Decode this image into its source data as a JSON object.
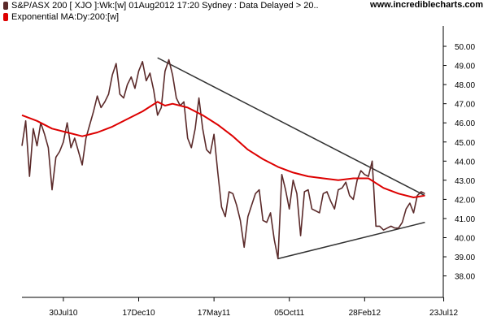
{
  "header": {
    "series_label": "S&P/ASX 200 [ XJO ]:Wk:[w]  01Aug2012 17:20 Sydney : Data Delayed > 20..",
    "ma_label": "Exponential MA:Dy:200:[w]",
    "site": "www.incrediblecharts.com"
  },
  "colors": {
    "price": "#5b2a2a",
    "ma": "#dd0000",
    "trendline": "#333333",
    "axis": "#000000"
  },
  "chart_data": {
    "type": "line",
    "title": "",
    "xlabel": "",
    "ylabel": "",
    "ylim": [
      37.5,
      50.5
    ],
    "xlim": [
      0,
      109
    ],
    "x_ticks": [
      {
        "x": 11,
        "label": "30Jul10"
      },
      {
        "x": 31,
        "label": "17Dec10"
      },
      {
        "x": 51,
        "label": "17May11"
      },
      {
        "x": 71,
        "label": "05Oct11"
      },
      {
        "x": 91,
        "label": "28Feb12"
      },
      {
        "x": 112,
        "label": "23Jul12"
      }
    ],
    "y_ticks": [
      38,
      39,
      40,
      41,
      42,
      43,
      44,
      45,
      46,
      47,
      48,
      49,
      50
    ],
    "y_tick_labels": [
      "38.00",
      "39.00",
      "40.00",
      "41.00",
      "42.00",
      "43.00",
      "44.00",
      "45.00",
      "46.00",
      "47.00",
      "48.00",
      "49.00",
      "50.00"
    ],
    "series": [
      {
        "name": "S&P/ASX 200 [ XJO ]:Wk:[w]",
        "x": [
          0,
          1,
          2,
          3,
          4,
          5,
          6,
          7,
          8,
          9,
          10,
          11,
          12,
          13,
          14,
          15,
          16,
          17,
          18,
          19,
          20,
          21,
          22,
          23,
          24,
          25,
          26,
          27,
          28,
          29,
          30,
          31,
          32,
          33,
          34,
          35,
          36,
          37,
          38,
          39,
          40,
          41,
          42,
          43,
          44,
          45,
          46,
          47,
          48,
          49,
          50,
          51,
          52,
          53,
          54,
          55,
          56,
          57,
          58,
          59,
          60,
          61,
          62,
          63,
          64,
          65,
          66,
          67,
          68,
          69,
          70,
          71,
          72,
          73,
          74,
          75,
          76,
          77,
          78,
          79,
          80,
          81,
          82,
          83,
          84,
          85,
          86,
          87,
          88,
          89,
          90,
          91,
          92,
          93,
          94,
          95,
          96,
          97,
          98,
          99,
          100,
          101,
          102,
          103,
          104,
          105,
          106,
          107
        ],
        "values": [
          44.8,
          46.1,
          43.2,
          45.7,
          44.8,
          46.0,
          45.4,
          44.7,
          42.5,
          44.2,
          44.5,
          45.0,
          46.0,
          44.7,
          45.2,
          44.5,
          43.8,
          45.2,
          45.9,
          46.6,
          47.4,
          46.8,
          47.1,
          47.5,
          48.5,
          49.1,
          47.5,
          47.3,
          48.0,
          48.4,
          47.8,
          48.7,
          49.2,
          48.2,
          48.6,
          47.7,
          46.4,
          46.8,
          48.7,
          49.3,
          48.5,
          47.3,
          46.9,
          47.1,
          45.2,
          44.7,
          45.7,
          47.3,
          45.7,
          44.6,
          44.4,
          45.4,
          43.4,
          41.6,
          41.1,
          42.4,
          42.3,
          41.7,
          40.9,
          39.5,
          41.1,
          41.7,
          42.3,
          42.5,
          40.9,
          40.8,
          41.3,
          39.9,
          38.9,
          43.3,
          42.5,
          41.5,
          43.0,
          42.3,
          40.1,
          42.4,
          42.5,
          41.5,
          41.4,
          41.3,
          42.3,
          42.4,
          41.9,
          41.5,
          42.5,
          42.6,
          42.9,
          42.2,
          42.0,
          43.0,
          43.5,
          43.3,
          43.2,
          44.0,
          40.6,
          40.6,
          40.4,
          40.5,
          40.6,
          40.5,
          40.5,
          40.8,
          41.5,
          41.8,
          41.3,
          42.2,
          42.4,
          42.3
        ]
      },
      {
        "name": "Exponential MA:Dy:200:[w]",
        "x": [
          0,
          4,
          8,
          12,
          16,
          20,
          24,
          28,
          32,
          36,
          38,
          40,
          44,
          48,
          52,
          56,
          60,
          64,
          68,
          72,
          76,
          80,
          84,
          88,
          92,
          96,
          100,
          104,
          107
        ],
        "values": [
          46.4,
          46.1,
          45.7,
          45.5,
          45.3,
          45.5,
          45.8,
          46.2,
          46.6,
          47.1,
          46.9,
          47.0,
          46.8,
          46.4,
          45.9,
          45.3,
          44.6,
          44.1,
          43.7,
          43.4,
          43.2,
          43.1,
          43.0,
          43.1,
          43.1,
          42.6,
          42.3,
          42.1,
          42.2
        ]
      }
    ],
    "trendlines": [
      {
        "x": [
          36,
          107
        ],
        "values": [
          49.4,
          42.2
        ]
      },
      {
        "x": [
          68,
          107
        ],
        "values": [
          38.9,
          40.8
        ]
      }
    ],
    "grid": false,
    "legend": "top-left"
  }
}
